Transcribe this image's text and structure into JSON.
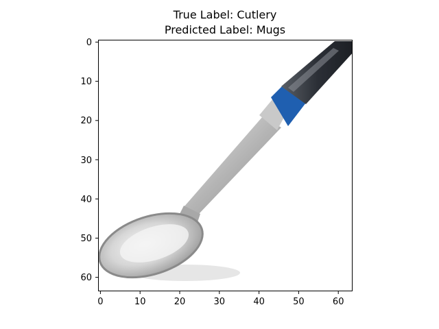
{
  "figure": {
    "title_lines": [
      "True Label: Cutlery",
      "Predicted Label: Mugs"
    ]
  },
  "image": {
    "description": "64x64 pixelated image of a metal spoon with black and blue handle",
    "pixel_grid": [
      64,
      64
    ],
    "colors": {
      "background": "#ffffff",
      "metal_light": "#eeeeee",
      "metal_mid": "#c8c8c8",
      "metal_dark": "#8e8e8e",
      "handle_dark": "#2b2f36",
      "handle_gray": "#5a5f66",
      "band_blue": "#1f5fb0",
      "shadow": "#dcdcdc"
    }
  },
  "axes": {
    "x_ticks": [
      "0",
      "10",
      "20",
      "30",
      "40",
      "50",
      "60"
    ],
    "y_ticks": [
      "0",
      "10",
      "20",
      "30",
      "40",
      "50",
      "60"
    ],
    "range": [
      -0.5,
      63.5
    ]
  }
}
